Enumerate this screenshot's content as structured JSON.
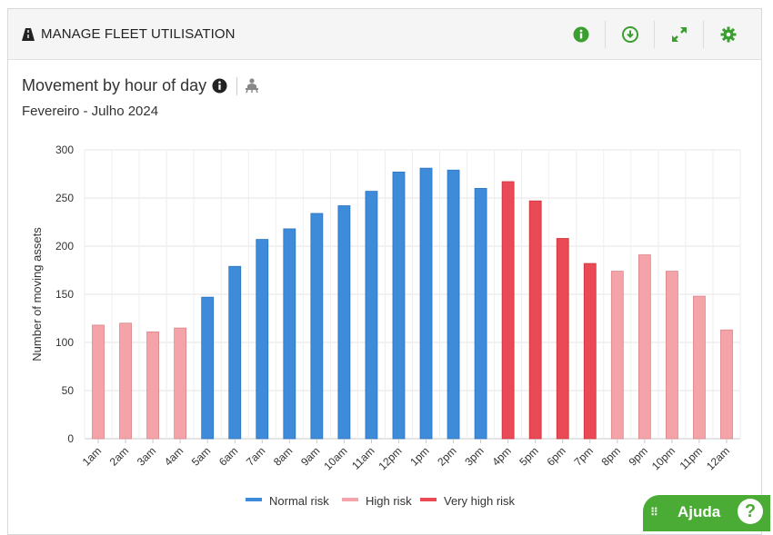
{
  "panel": {
    "title": "MANAGE FLEET UTILISATION",
    "actions": [
      {
        "name": "info-icon"
      },
      {
        "name": "download-icon"
      },
      {
        "name": "expand-icon"
      },
      {
        "name": "gear-icon"
      }
    ]
  },
  "chart_header": {
    "title": "Movement by hour of day",
    "subtitle": "Fevereiro - Julho 2024"
  },
  "help_button": {
    "label": "Ajuda",
    "symbol": "?"
  },
  "colors": {
    "normal": "#3d8bd9",
    "high": "#f4a3a8",
    "very_high": "#ea4a55",
    "accent": "#4aac35"
  },
  "chart_data": {
    "type": "bar",
    "categories": [
      "1am",
      "2am",
      "3am",
      "4am",
      "5am",
      "6am",
      "7am",
      "8am",
      "9am",
      "10am",
      "11am",
      "12pm",
      "1pm",
      "2pm",
      "3pm",
      "4pm",
      "5pm",
      "6pm",
      "7pm",
      "8pm",
      "9pm",
      "10pm",
      "11pm",
      "12am"
    ],
    "values": [
      118,
      120,
      111,
      115,
      147,
      179,
      207,
      218,
      234,
      242,
      257,
      277,
      281,
      279,
      260,
      267,
      247,
      208,
      182,
      174,
      191,
      174,
      148,
      113
    ],
    "risk": [
      "High risk",
      "High risk",
      "High risk",
      "High risk",
      "Normal risk",
      "Normal risk",
      "Normal risk",
      "Normal risk",
      "Normal risk",
      "Normal risk",
      "Normal risk",
      "Normal risk",
      "Normal risk",
      "Normal risk",
      "Normal risk",
      "Very high risk",
      "Very high risk",
      "Very high risk",
      "Very high risk",
      "High risk",
      "High risk",
      "High risk",
      "High risk",
      "High risk"
    ],
    "legend": [
      "Normal risk",
      "High risk",
      "Very high risk"
    ],
    "legend_position": "bottom-center",
    "ylabel": "Number of moving assets",
    "ylim": [
      0,
      300
    ],
    "yticks": [
      0,
      50,
      100,
      150,
      200,
      250,
      300
    ],
    "grid": true
  }
}
